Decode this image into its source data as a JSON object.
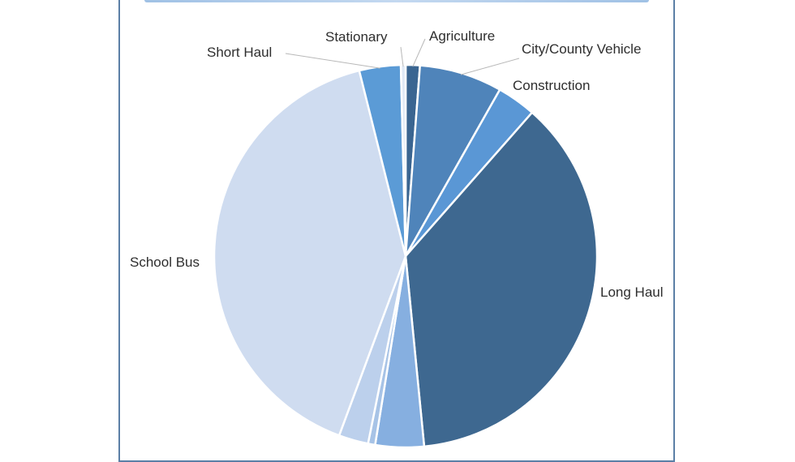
{
  "chart_data": {
    "type": "pie",
    "title": "",
    "slices": [
      {
        "label": "Agriculture",
        "value": 1.2,
        "color": "#3a6591"
      },
      {
        "label": "City/County Vehicle",
        "value": 7.0,
        "color": "#4f84ba"
      },
      {
        "label": "Construction",
        "value": 3.3,
        "color": "#5a97d5"
      },
      {
        "label": "Long Haul",
        "value": 37.0,
        "color": "#3e6890"
      },
      {
        "label": "",
        "value": 4.1,
        "color": "#86afe0"
      },
      {
        "label": "",
        "value": 0.6,
        "color": "#a7c3e6"
      },
      {
        "label": "",
        "value": 2.5,
        "color": "#bcd0ec"
      },
      {
        "label": "School Bus",
        "value": 40.5,
        "color": "#cfdcf0"
      },
      {
        "label": "Short Haul",
        "value": 3.5,
        "color": "#5b9bd6"
      },
      {
        "label": "Stationary",
        "value": 0.4,
        "color": "#dfe8f5"
      }
    ],
    "start_angle_deg": 0,
    "direction": "clockwise",
    "legend": "none",
    "data_labels": "category name outside"
  }
}
